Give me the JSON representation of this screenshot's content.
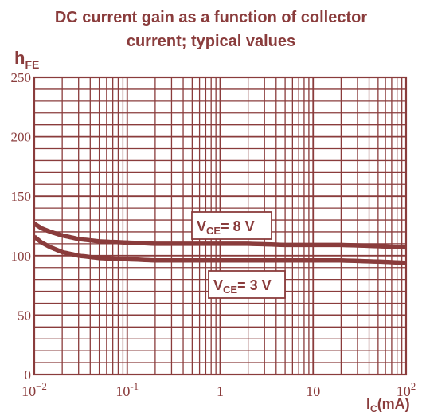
{
  "chart_data": {
    "type": "line",
    "title_lines": [
      "DC current gain as a function of collector",
      "current; typical values"
    ],
    "ylabel_main": "h",
    "ylabel_sub": "FE",
    "xlabel_main": "I",
    "xlabel_sub": "C",
    "xlabel_unit": "(mA)",
    "x_scale": "log",
    "xlim": [
      0.01,
      100
    ],
    "ylim": [
      0,
      250
    ],
    "grid": true,
    "x_ticks": [
      {
        "value": 0.01,
        "base": "10",
        "exp": "−2"
      },
      {
        "value": 0.1,
        "base": "10",
        "exp": "-1"
      },
      {
        "value": 1,
        "base": "1",
        "exp": ""
      },
      {
        "value": 10,
        "base": "10",
        "exp": ""
      },
      {
        "value": 100,
        "base": "10",
        "exp": "2"
      }
    ],
    "y_ticks": [
      0,
      50,
      100,
      150,
      200,
      250
    ],
    "series": [
      {
        "name_main": "V",
        "name_sub": "CE",
        "name_rest": "= 8 V",
        "x": [
          0.01,
          0.012,
          0.015,
          0.02,
          0.03,
          0.05,
          0.1,
          0.2,
          0.5,
          1,
          2,
          5,
          10,
          20,
          50,
          100
        ],
        "y": [
          127,
          123,
          120,
          117,
          114,
          112,
          111,
          110,
          110,
          110,
          110,
          109,
          109,
          109,
          108,
          107
        ]
      },
      {
        "name_main": "V",
        "name_sub": "CE",
        "name_rest": "= 3 V",
        "x": [
          0.01,
          0.012,
          0.015,
          0.02,
          0.03,
          0.05,
          0.1,
          0.2,
          0.5,
          1,
          2,
          5,
          10,
          20,
          50,
          100
        ],
        "y": [
          116,
          111,
          107,
          103,
          100,
          98,
          97,
          96,
          96,
          96,
          96,
          96,
          96,
          96,
          95,
          94
        ]
      }
    ]
  }
}
